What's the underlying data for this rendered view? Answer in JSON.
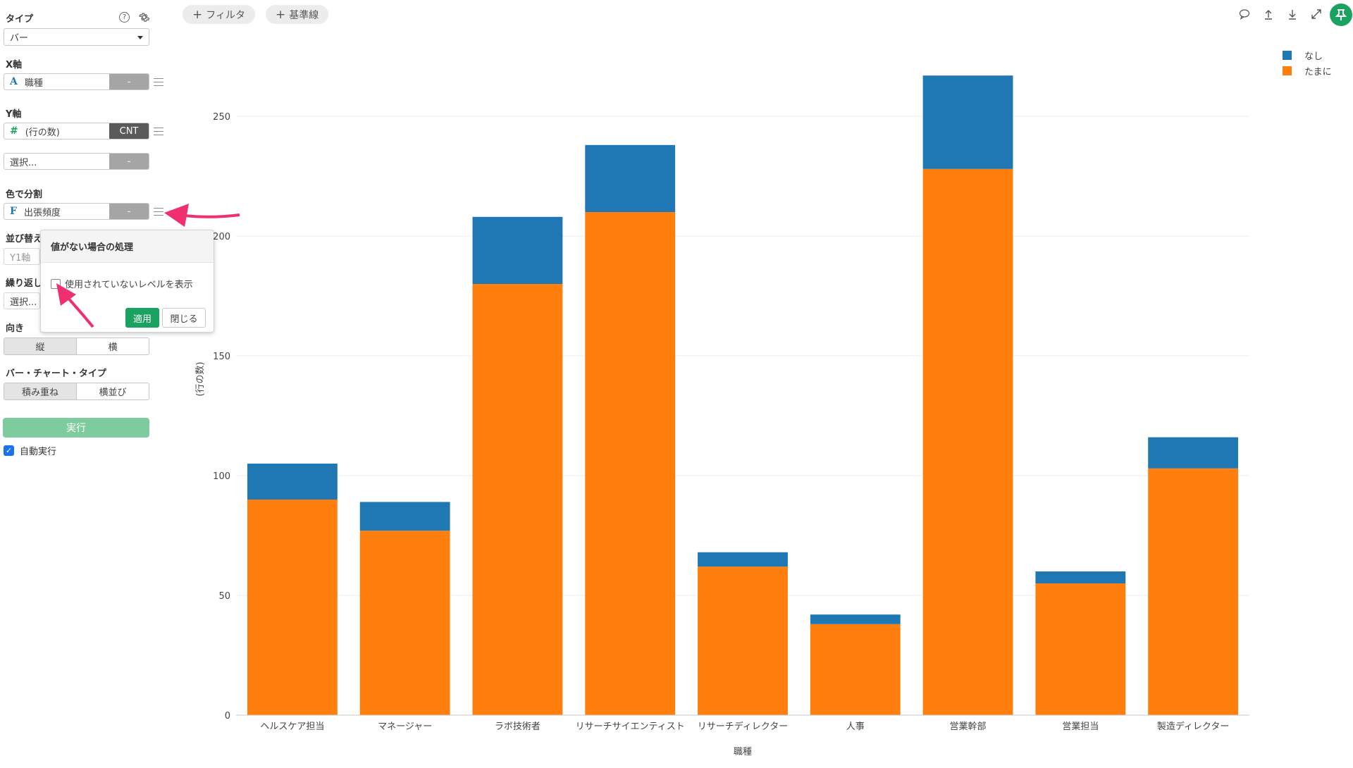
{
  "left_panel": {
    "type": {
      "label": "タイプ",
      "value": "バー",
      "help_icon": "question-circle-icon",
      "settings_icon": "gear-icon"
    },
    "x_axis": {
      "label": "X軸",
      "field_type_glyph": "A",
      "field_name": "職種",
      "button": "-"
    },
    "y_axis": {
      "label": "Y軸",
      "field_type_glyph": "#",
      "field_name": "(行の数)",
      "button": "CNT"
    },
    "y_axis_extra": {
      "placeholder": "選択...",
      "button": "-"
    },
    "color_split": {
      "label": "色で分割",
      "field_type_glyph": "F",
      "field_name": "出張頻度",
      "button": "-"
    },
    "sort": {
      "label": "並び替え",
      "value": "Y1軸"
    },
    "repeat": {
      "label": "繰り返し",
      "value": "選択..."
    },
    "orientation": {
      "label": "向き",
      "options": [
        "縦",
        "横"
      ],
      "active": "縦"
    },
    "bar_chart_type": {
      "label": "バー・チャート・タイプ",
      "options": [
        "積み重ね",
        "横並び"
      ],
      "active": "積み重ね"
    },
    "run_button": "実行",
    "auto_run": {
      "label": "自動実行",
      "checked": true
    }
  },
  "popover": {
    "title": "値がない場合の処理",
    "checkbox_label": "使用されていないレベルを表示",
    "checked": false,
    "apply": "適用",
    "close": "閉じる"
  },
  "toolbar": {
    "filter": "フィルタ",
    "baseline": "基準線",
    "icons": [
      "comment-icon",
      "upload-icon",
      "download-icon",
      "expand-icon",
      "pin-icon"
    ]
  },
  "colors": {
    "accent": "#1aa260",
    "series_blue": "#1f77b4",
    "series_orange": "#ff7f0e",
    "annotation_arrow": "#f0306e"
  },
  "chart_data": {
    "type": "bar",
    "stacked": true,
    "orientation": "vertical",
    "categories": [
      "ヘルスケア担当",
      "マネージャー",
      "ラボ技術者",
      "リサーチサイエンティスト",
      "リサーチディレクター",
      "人事",
      "営業幹部",
      "営業担当",
      "製造ディレクター"
    ],
    "series": [
      {
        "name": "たまに",
        "color": "#ff7f0e",
        "values": [
          90,
          77,
          180,
          210,
          62,
          38,
          228,
          55,
          103
        ]
      },
      {
        "name": "なし",
        "color": "#1f77b4",
        "values": [
          15,
          12,
          28,
          28,
          6,
          4,
          39,
          5,
          13
        ]
      }
    ],
    "legend": [
      "なし",
      "たまに"
    ],
    "xlabel": "職種",
    "ylabel": "(行の数)",
    "ylim": [
      0,
      250
    ],
    "yticks": [
      0,
      50,
      100,
      150,
      200,
      250
    ],
    "grid": true,
    "legend_position": "top-right"
  }
}
